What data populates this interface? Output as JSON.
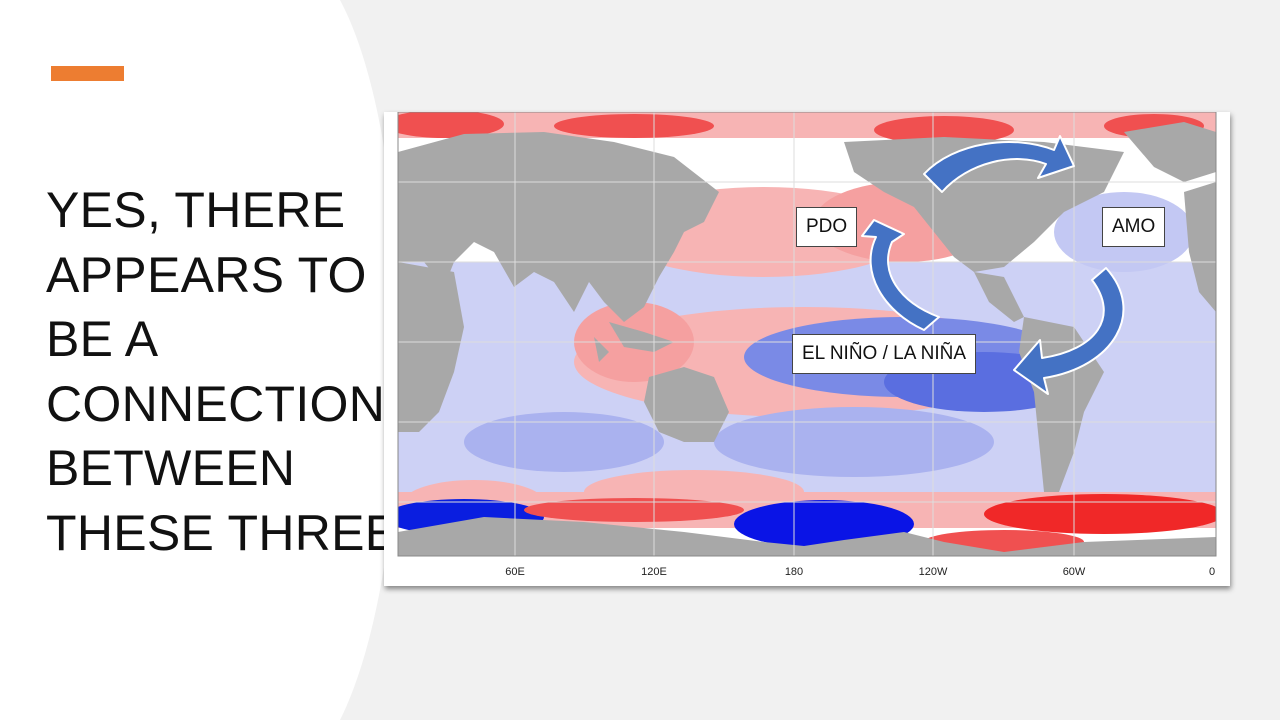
{
  "slide": {
    "title_lines": [
      "YES, THERE",
      "APPEARS TO",
      "BE A",
      "CONNECTION",
      "BETWEEN",
      "THESE THREE"
    ],
    "accent_color": "#ed7d31"
  },
  "map": {
    "description_type": "sea surface temperature anomaly world map",
    "longitude_ticks": [
      "60E",
      "120E",
      "180",
      "120W",
      "60W",
      "0"
    ],
    "colors": {
      "warm": "#f05050",
      "warm_light": "#f7b4b4",
      "cool": "#5a6ee0",
      "cool_light": "#c3c8f3",
      "land": "#a8a8a8",
      "arrow": "#4472c4"
    }
  },
  "labels": {
    "pdo": "PDO",
    "amo": "AMO",
    "enso": "EL NIÑO / LA NIÑA"
  }
}
